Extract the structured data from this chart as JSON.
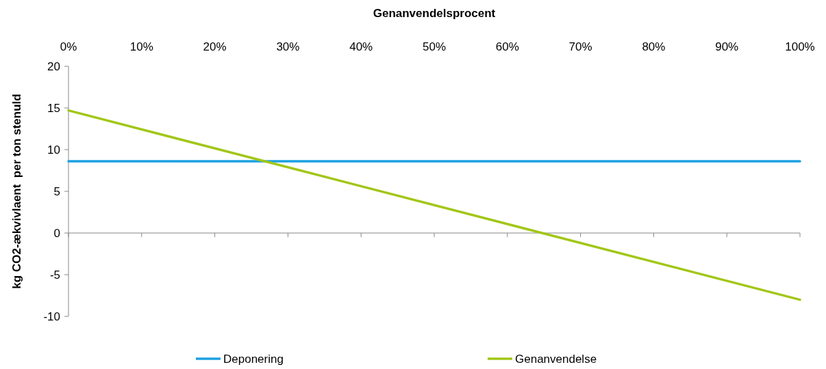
{
  "chart_data": {
    "type": "line",
    "xlabel": "Genanvendelsprocent",
    "ylabel": "kg CO2-ækvivlaent  per ton stenuld",
    "x": [
      0,
      100
    ],
    "xlim": [
      0,
      100
    ],
    "xticks": [
      {
        "value": 0,
        "label": "0%"
      },
      {
        "value": 10,
        "label": "10%"
      },
      {
        "value": 20,
        "label": "20%"
      },
      {
        "value": 30,
        "label": "30%"
      },
      {
        "value": 40,
        "label": "40%"
      },
      {
        "value": 50,
        "label": "50%"
      },
      {
        "value": 60,
        "label": "60%"
      },
      {
        "value": 70,
        "label": "70%"
      },
      {
        "value": 80,
        "label": "80%"
      },
      {
        "value": 90,
        "label": "90%"
      },
      {
        "value": 100,
        "label": "100%"
      }
    ],
    "ylim": [
      -10,
      20
    ],
    "yticks": [
      -10,
      -5,
      0,
      5,
      10,
      15,
      20
    ],
    "series": [
      {
        "name": "Deponering",
        "color": "#1ba1e2",
        "values": [
          8.6,
          8.6
        ]
      },
      {
        "name": "Genanvendelse",
        "color": "#a2c617",
        "values": [
          14.7,
          -8.0
        ]
      }
    ],
    "legend": "bottom",
    "marker": "none",
    "line_style": "solid"
  }
}
